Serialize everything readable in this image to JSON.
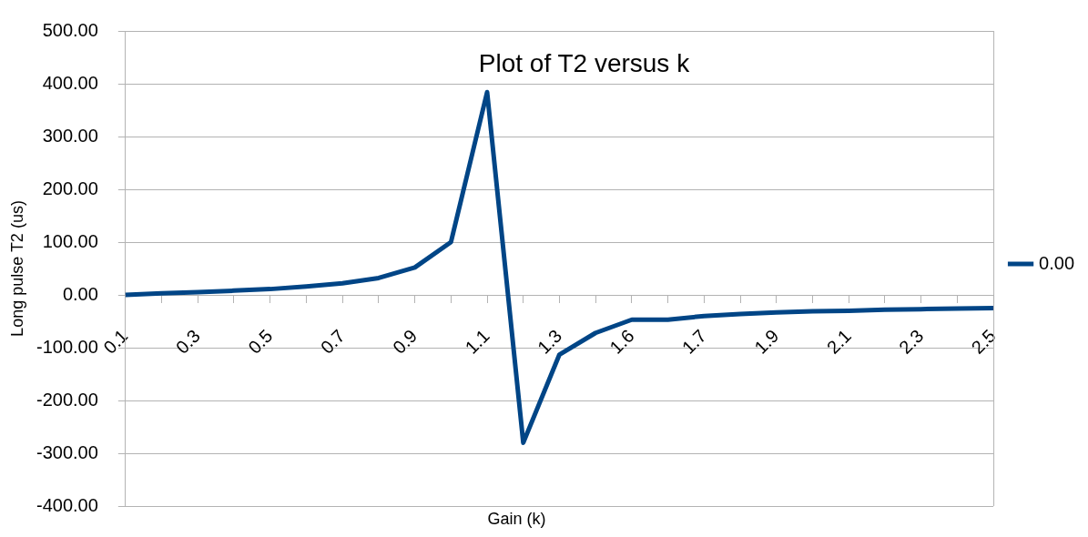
{
  "chart_data": {
    "type": "line",
    "title": "Plot of T2 versus k",
    "xlabel": "Gain (k)",
    "ylabel": "Long pulse T2 (us)",
    "categories": [
      "0.1",
      null,
      "0.3",
      null,
      "0.5",
      null,
      "0.7",
      null,
      "0.9",
      null,
      "1.1",
      null,
      "1.3",
      null,
      "1.6",
      null,
      "1.7",
      null,
      "1.9",
      null,
      "2.1",
      null,
      "2.3",
      null,
      "2.5"
    ],
    "series": [
      {
        "name": "0.00",
        "color": "#004586",
        "values": [
          0,
          3,
          5,
          8,
          11,
          16,
          22,
          32,
          52,
          100,
          384,
          -280,
          -113,
          -72,
          -47,
          -47,
          -40,
          -36,
          -33,
          -31,
          -30,
          -28,
          -27,
          -26,
          -25
        ]
      }
    ],
    "ylim": [
      -400,
      500
    ],
    "yticks": [
      {
        "value": -400,
        "label": "-400.00"
      },
      {
        "value": -300,
        "label": "-300.00"
      },
      {
        "value": -200,
        "label": "-200.00"
      },
      {
        "value": -100,
        "label": "-100.00"
      },
      {
        "value": 0,
        "label": "0.00"
      },
      {
        "value": 100,
        "label": "100.00"
      },
      {
        "value": 200,
        "label": "200.00"
      },
      {
        "value": 300,
        "label": "300.00"
      },
      {
        "value": 400,
        "label": "400.00"
      },
      {
        "value": 500,
        "label": "500.00"
      }
    ],
    "grid": "y",
    "legend": "right",
    "marker": "none",
    "line_style": "solid"
  }
}
